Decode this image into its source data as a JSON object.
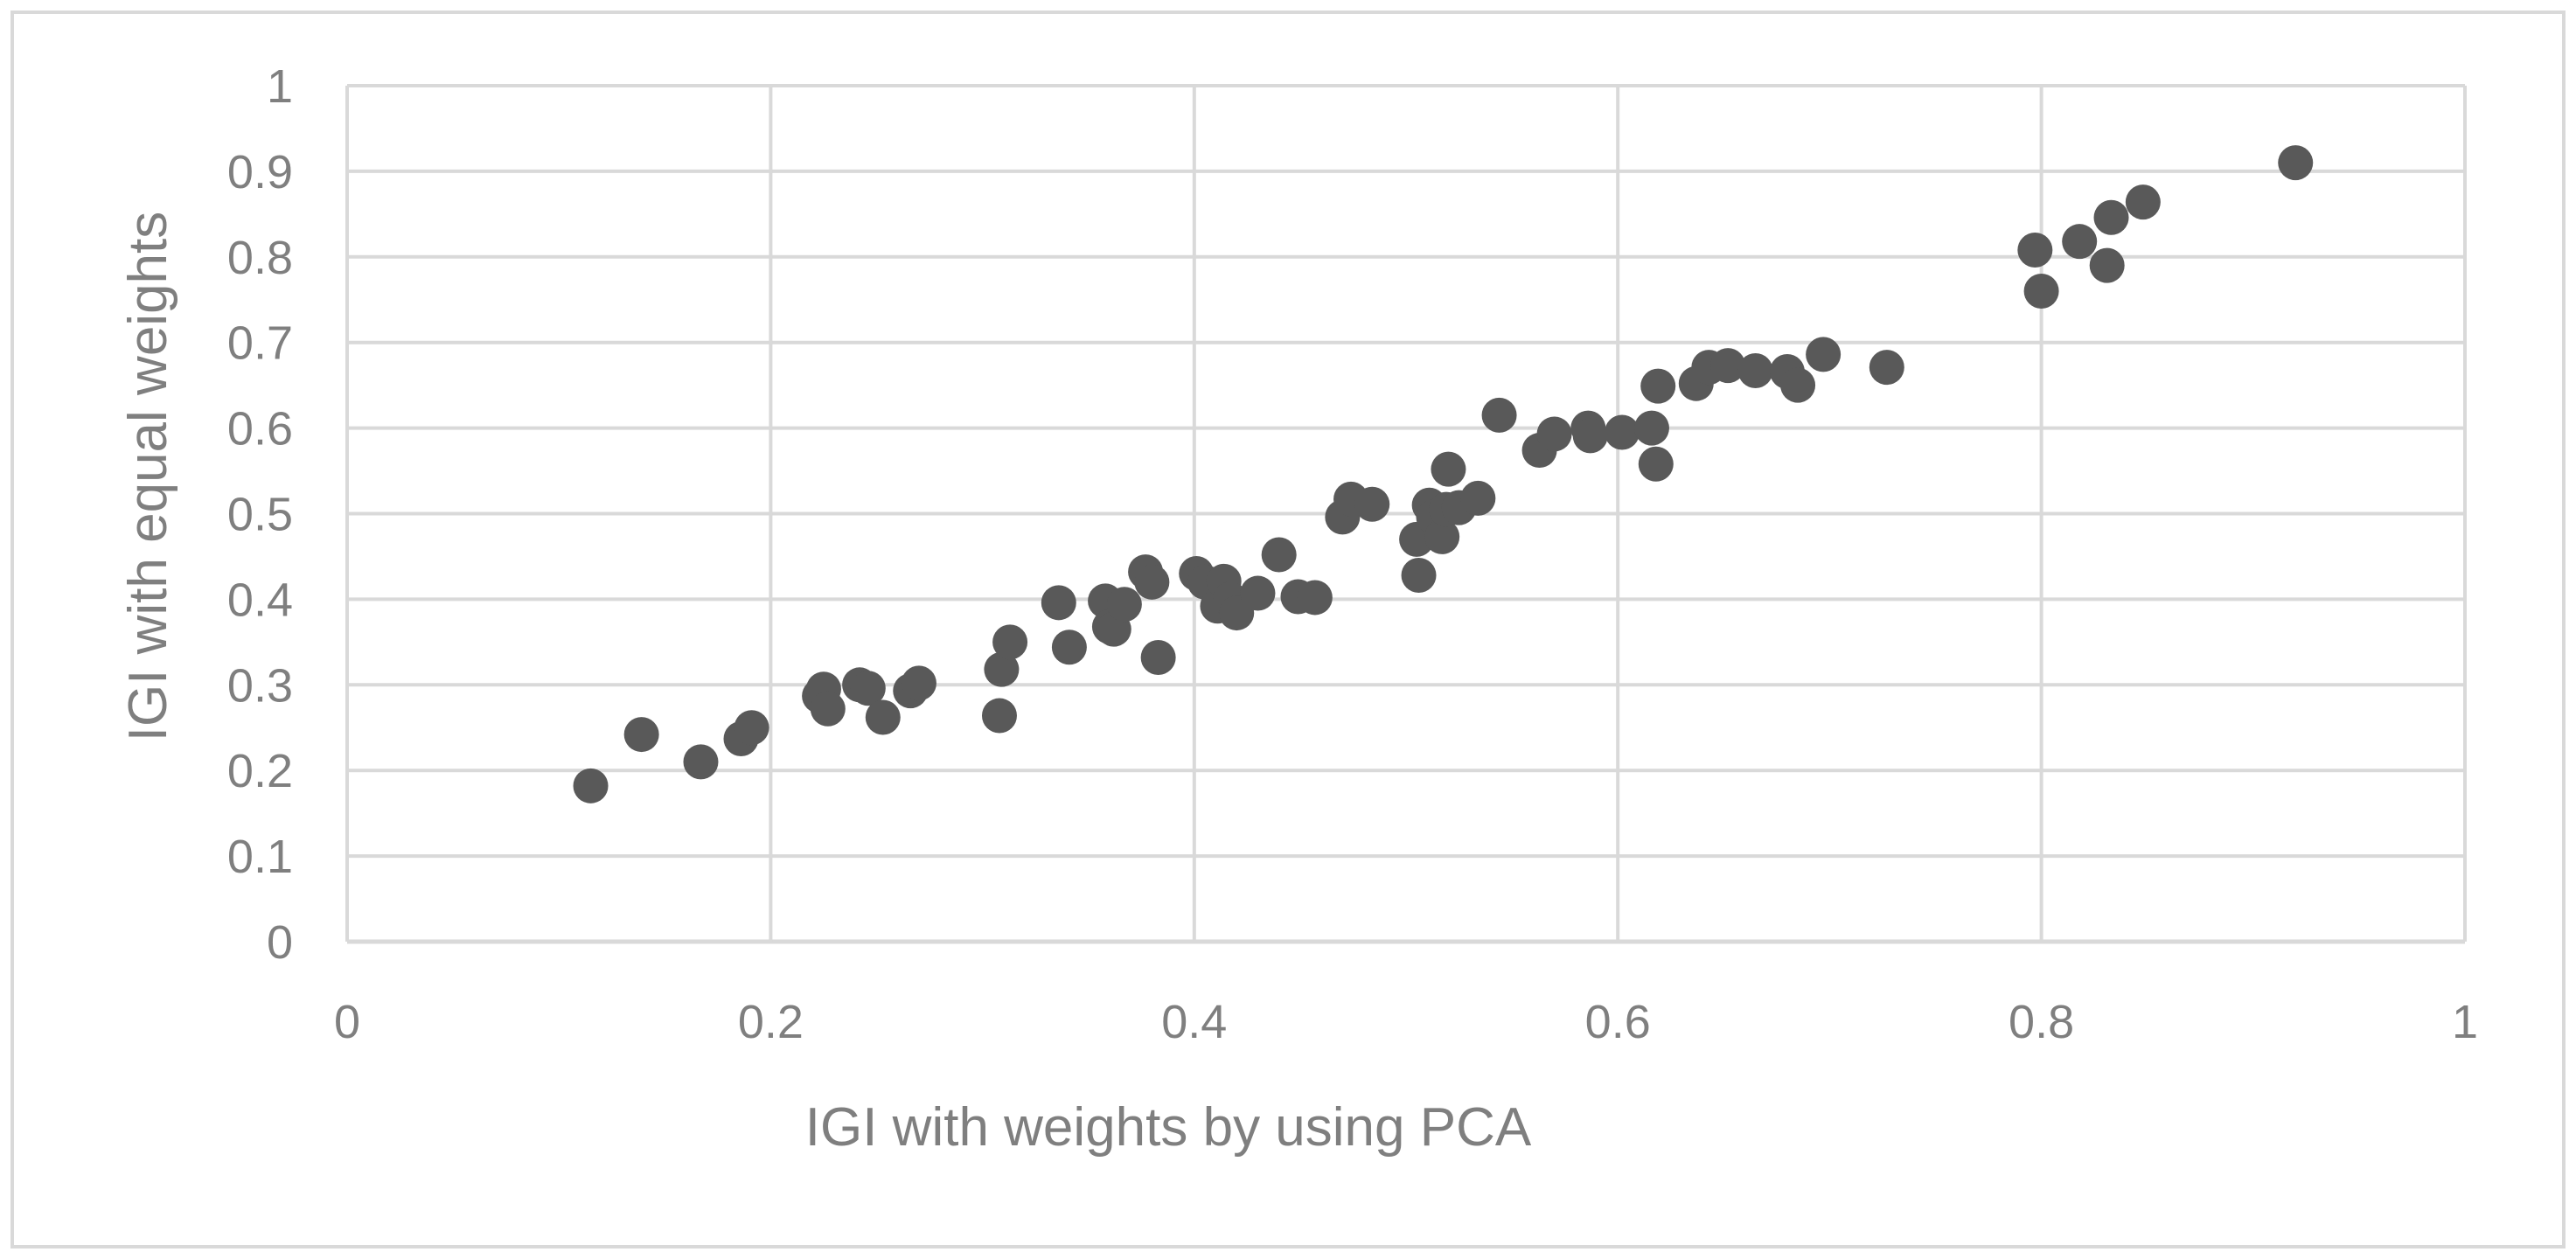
{
  "colors": {
    "background": "#ffffff",
    "border": "#d9d9d9",
    "grid": "#d9d9d9",
    "axis_text": "#7f7f7f",
    "marker": "#595959"
  },
  "chart_data": {
    "type": "scatter",
    "title": "",
    "xlabel": "IGI with weights by using PCA",
    "ylabel": "IGI with equal weights",
    "xlim": [
      0,
      1
    ],
    "ylim": [
      0,
      1
    ],
    "x_ticks": [
      "0",
      "0.2",
      "0.4",
      "0.6",
      "0.8",
      "1"
    ],
    "y_ticks": [
      "0",
      "0.1",
      "0.2",
      "0.3",
      "0.4",
      "0.5",
      "0.6",
      "0.7",
      "0.8",
      "0.9",
      "1"
    ],
    "grid": true,
    "legend": "none",
    "series": [
      {
        "x": [
          0.115,
          0.139,
          0.167,
          0.186,
          0.191,
          0.223,
          0.225,
          0.227,
          0.242,
          0.246,
          0.253,
          0.266,
          0.27,
          0.308,
          0.309,
          0.313,
          0.336,
          0.341,
          0.358,
          0.36,
          0.362,
          0.367,
          0.377,
          0.38,
          0.383,
          0.401,
          0.405,
          0.411,
          0.414,
          0.417,
          0.42,
          0.43,
          0.44,
          0.449,
          0.457,
          0.47,
          0.474,
          0.484,
          0.505,
          0.506,
          0.511,
          0.513,
          0.517,
          0.519,
          0.52,
          0.525,
          0.534,
          0.544,
          0.563,
          0.57,
          0.586,
          0.587,
          0.602,
          0.616,
          0.618,
          0.619,
          0.637,
          0.643,
          0.652,
          0.665,
          0.68,
          0.685,
          0.697,
          0.727,
          0.797,
          0.8,
          0.818,
          0.831,
          0.833,
          0.848,
          0.92
        ],
        "y": [
          0.182,
          0.242,
          0.21,
          0.237,
          0.25,
          0.287,
          0.295,
          0.272,
          0.3,
          0.296,
          0.262,
          0.293,
          0.302,
          0.264,
          0.318,
          0.35,
          0.396,
          0.344,
          0.398,
          0.368,
          0.365,
          0.394,
          0.432,
          0.42,
          0.332,
          0.43,
          0.42,
          0.392,
          0.421,
          0.4,
          0.384,
          0.407,
          0.452,
          0.403,
          0.402,
          0.496,
          0.517,
          0.511,
          0.47,
          0.428,
          0.51,
          0.496,
          0.473,
          0.505,
          0.552,
          0.507,
          0.518,
          0.615,
          0.574,
          0.593,
          0.6,
          0.591,
          0.595,
          0.6,
          0.558,
          0.649,
          0.652,
          0.671,
          0.673,
          0.667,
          0.666,
          0.65,
          0.686,
          0.671,
          0.808,
          0.76,
          0.818,
          0.79,
          0.846,
          0.864,
          0.91
        ]
      }
    ]
  }
}
